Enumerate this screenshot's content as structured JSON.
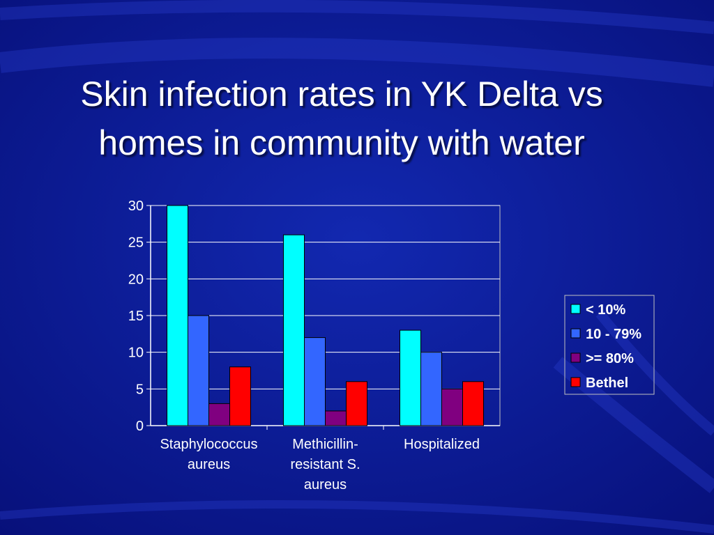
{
  "slide": {
    "title_lines": [
      "Skin infection rates in YK Delta vs",
      "homes in community with water"
    ]
  },
  "chart_data": {
    "type": "bar",
    "categories": [
      [
        "Staphylococcus",
        "aureus"
      ],
      [
        "Methicillin-",
        "resistant S.",
        "aureus"
      ],
      [
        "Hospitalized"
      ]
    ],
    "series": [
      {
        "name": "< 10%",
        "color": "#00ffff",
        "values": [
          30,
          26,
          13
        ]
      },
      {
        "name": "10 - 79%",
        "color": "#3366ff",
        "values": [
          15,
          12,
          10
        ]
      },
      {
        "name": ">= 80%",
        "color": "#800080",
        "values": [
          3,
          2,
          5
        ]
      },
      {
        "name": "Bethel",
        "color": "#ff0000",
        "values": [
          8,
          6,
          6
        ]
      }
    ],
    "ylim": [
      0,
      30
    ],
    "yticks": [
      "0",
      "5",
      "10",
      "15",
      "20",
      "25",
      "30"
    ],
    "grid": true,
    "legend": "right"
  }
}
